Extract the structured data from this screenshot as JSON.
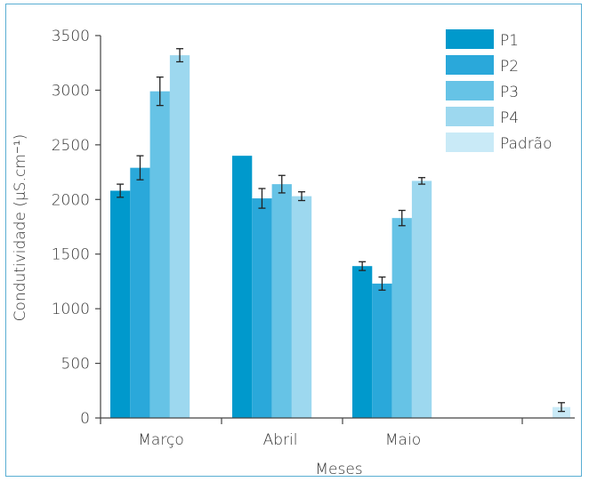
{
  "chart_data": {
    "type": "bar",
    "xlabel": "Meses",
    "ylabel": "Condutividade (µS.cm⁻¹)",
    "ylim": [
      0,
      3500
    ],
    "yticks": [
      0,
      500,
      1000,
      1500,
      2000,
      2500,
      3000,
      3500
    ],
    "categories": [
      "Março",
      "Abril",
      "Maio",
      ""
    ],
    "grid": false,
    "legend_position": "top-right",
    "series": [
      {
        "name": "P1",
        "color": "#0099cc",
        "values": [
          2080,
          2400,
          1390,
          null
        ],
        "errors": [
          60,
          null,
          40,
          null
        ]
      },
      {
        "name": "P2",
        "color": "#2aa8da",
        "values": [
          2290,
          2010,
          1230,
          null
        ],
        "errors": [
          110,
          90,
          60,
          null
        ]
      },
      {
        "name": "P3",
        "color": "#66c3e6",
        "values": [
          2990,
          2140,
          1830,
          null
        ],
        "errors": [
          130,
          80,
          70,
          null
        ]
      },
      {
        "name": "P4",
        "color": "#9dd8ef",
        "values": [
          3320,
          2030,
          2170,
          null
        ],
        "errors": [
          60,
          40,
          30,
          null
        ]
      },
      {
        "name": "Padrão",
        "color": "#c9eaf7",
        "values": [
          null,
          null,
          null,
          100
        ],
        "errors": [
          null,
          null,
          null,
          40
        ]
      }
    ]
  }
}
